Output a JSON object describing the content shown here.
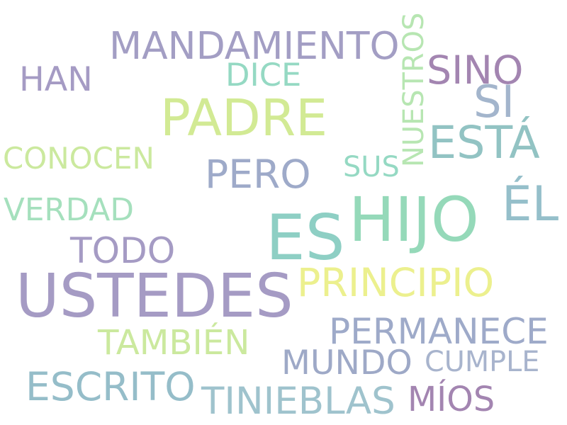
{
  "words": [
    {
      "id": "ustedes",
      "text": "USTEDES",
      "color": "#a59bc4"
    },
    {
      "id": "es",
      "text": "ES",
      "color": "#8ecfc4"
    },
    {
      "id": "padre",
      "text": "PADRE",
      "color": "#d2ea94"
    },
    {
      "id": "hijo",
      "text": "HIJO",
      "color": "#95d9b9"
    },
    {
      "id": "mandamiento",
      "text": "MANDAMIENTO",
      "color": "#a39ec4"
    },
    {
      "id": "esta",
      "text": "ESTÁ",
      "color": "#92c3c3"
    },
    {
      "id": "el",
      "text": "ÉL",
      "color": "#95bfca"
    },
    {
      "id": "pero",
      "text": "PERO",
      "color": "#9eaac9"
    },
    {
      "id": "todo",
      "text": "TODO",
      "color": "#a59bc4"
    },
    {
      "id": "permanece",
      "text": "PERMANECE",
      "color": "#9eaac9"
    },
    {
      "id": "mundo",
      "text": "MUNDO",
      "color": "#9ea9c7"
    },
    {
      "id": "escrito",
      "text": "ESCRITO",
      "color": "#95bdc9"
    },
    {
      "id": "principio",
      "text": "PRINCIPIO",
      "color": "#ecf08e"
    },
    {
      "id": "han",
      "text": "HAN",
      "color": "#a59bc4"
    },
    {
      "id": "sino",
      "text": "SINO",
      "color": "#a385b1"
    },
    {
      "id": "conocen",
      "text": "CONOCEN",
      "color": "#cbe99e"
    },
    {
      "id": "verdad",
      "text": "VERDAD",
      "color": "#a5e0bd"
    },
    {
      "id": "tambien",
      "text": "TAMBIÉN",
      "color": "#cbe99e"
    },
    {
      "id": "tinieblas",
      "text": "TINIEBLAS",
      "color": "#9fc3cd"
    },
    {
      "id": "mios",
      "text": "MÍOS",
      "color": "#a385b1"
    },
    {
      "id": "cumple",
      "text": "CUMPLE",
      "color": "#a8b4cd"
    },
    {
      "id": "nuestros",
      "text": "NUESTROS",
      "color": "#b7e6b2"
    },
    {
      "id": "dice",
      "text": "DICE",
      "color": "#95d9c3"
    },
    {
      "id": "si",
      "text": "SI",
      "color": "#a3b5cc"
    },
    {
      "id": "sus",
      "text": "SUS",
      "color": "#95d9c3"
    }
  ]
}
